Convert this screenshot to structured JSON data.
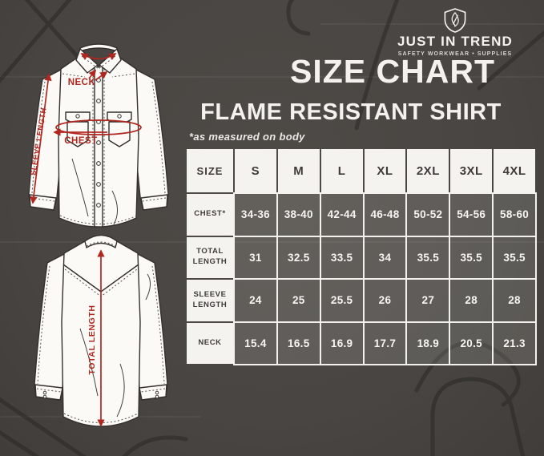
{
  "colors": {
    "background": "#4b4744",
    "accent_red": "#b0271f",
    "cell_light": "#f4f3f0",
    "cell_dark": "#56524e",
    "text_dark": "#3e3b38",
    "text_light": "#f6f5f2"
  },
  "logo": {
    "icon": "shield-flame-icon",
    "brand": "JUST IN TREND",
    "tagline": "SAFETY WORKWEAR • SUPPLIES"
  },
  "header": {
    "title": "SIZE CHART",
    "subtitle": "FLAME RESISTANT SHIRT",
    "note": "*as measured on body"
  },
  "illustrations": {
    "front": {
      "description": "front view of snap-button work shirt with measurement arrows",
      "labels": {
        "neck": "NECK",
        "chest": "CHEST",
        "sleeve_length": "SLEEVE LENGTH"
      }
    },
    "back": {
      "description": "back view of shirt with vertical measurement arrow",
      "labels": {
        "total_length": "TOTAL LENGTH"
      }
    }
  },
  "size_table": {
    "corner_label": "SIZE",
    "sizes": [
      "S",
      "M",
      "L",
      "XL",
      "2XL",
      "3XL",
      "4XL"
    ],
    "rows": [
      {
        "label": "CHEST*",
        "values": [
          "34-36",
          "38-40",
          "42-44",
          "46-48",
          "50-52",
          "54-56",
          "58-60"
        ]
      },
      {
        "label": "TOTAL LENGTH",
        "values": [
          "31",
          "32.5",
          "33.5",
          "34",
          "35.5",
          "35.5",
          "35.5"
        ]
      },
      {
        "label": "SLEEVE LENGTH",
        "values": [
          "24",
          "25",
          "25.5",
          "26",
          "27",
          "28",
          "28"
        ]
      },
      {
        "label": "NECK",
        "values": [
          "15.4",
          "16.5",
          "16.9",
          "17.7",
          "18.9",
          "20.5",
          "21.3"
        ]
      }
    ]
  },
  "chart_data": {
    "type": "table",
    "title": "SIZE CHART",
    "subtitle": "FLAME RESISTANT SHIRT",
    "note": "*as measured on body",
    "columns": [
      "SIZE",
      "S",
      "M",
      "L",
      "XL",
      "2XL",
      "3XL",
      "4XL"
    ],
    "rows": [
      [
        "CHEST*",
        "34-36",
        "38-40",
        "42-44",
        "46-48",
        "50-52",
        "54-56",
        "58-60"
      ],
      [
        "TOTAL LENGTH",
        "31",
        "32.5",
        "33.5",
        "34",
        "35.5",
        "35.5",
        "35.5"
      ],
      [
        "SLEEVE LENGTH",
        "24",
        "25",
        "25.5",
        "26",
        "27",
        "28",
        "28"
      ],
      [
        "NECK",
        "15.4",
        "16.5",
        "16.9",
        "17.7",
        "18.9",
        "20.5",
        "21.3"
      ]
    ]
  }
}
